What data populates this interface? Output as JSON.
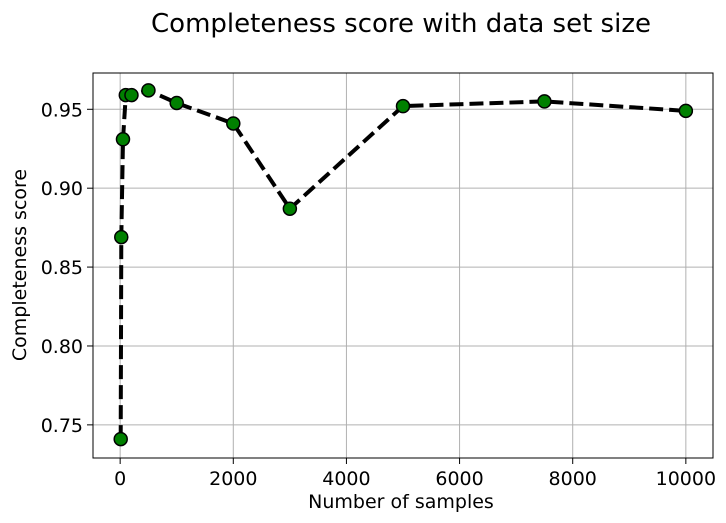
{
  "chart_data": {
    "type": "line",
    "title": "Completeness score with data set size",
    "xlabel": "Number of samples",
    "ylabel": "Completeness score",
    "xlim": [
      -480,
      10480
    ],
    "ylim": [
      0.729,
      0.973
    ],
    "xticks": [
      {
        "value": 0,
        "label": "0"
      },
      {
        "value": 2000,
        "label": "2000"
      },
      {
        "value": 4000,
        "label": "4000"
      },
      {
        "value": 6000,
        "label": "6000"
      },
      {
        "value": 8000,
        "label": "8000"
      },
      {
        "value": 10000,
        "label": "10000"
      }
    ],
    "yticks": [
      {
        "value": 0.75,
        "label": "0.75"
      },
      {
        "value": 0.8,
        "label": "0.80"
      },
      {
        "value": 0.85,
        "label": "0.85"
      },
      {
        "value": 0.9,
        "label": "0.90"
      },
      {
        "value": 0.95,
        "label": "0.95"
      }
    ],
    "grid": true,
    "line_style": "dashed",
    "line_color": "#000000",
    "marker_color": "#008000",
    "marker_edge_color": "#000000",
    "series": [
      {
        "x": [
          10,
          20,
          50,
          100,
          200,
          500,
          1000,
          2000,
          3000,
          5000,
          7500,
          10000
        ],
        "y": [
          0.741,
          0.869,
          0.931,
          0.959,
          0.959,
          0.962,
          0.954,
          0.941,
          0.887,
          0.952,
          0.955,
          0.949
        ]
      }
    ]
  }
}
